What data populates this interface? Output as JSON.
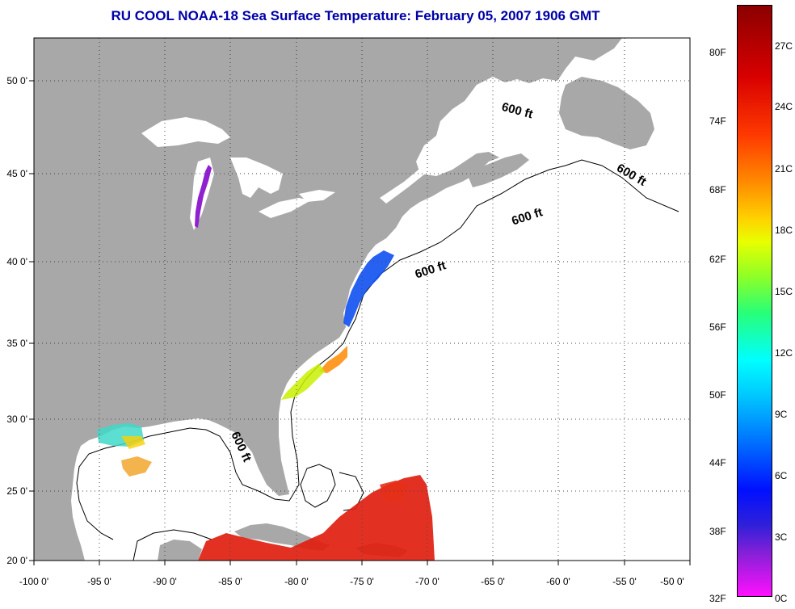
{
  "title": "RU COOL  NOAA-18  Sea Surface Temperature:  February 05, 2007 1906 GMT",
  "map": {
    "lon_ticks": [
      "-100 0'",
      "-95 0'",
      "-90 0'",
      "-85 0'",
      "-80 0'",
      "-75 0'",
      "-70 0'",
      "-65 0'",
      "-60 0'",
      "-55 0'",
      "-50 0'"
    ],
    "lat_ticks": [
      "50 0'",
      "45 0'",
      "40 0'",
      "35 0'",
      "30 0'",
      "25 0'",
      "20 0'"
    ],
    "depth_labels": [
      "600 ft",
      "600 ft",
      "600 ft",
      "600 ft",
      "600 ft"
    ],
    "land_color": "#a8a8a8",
    "ocean_color": "#ffffff"
  },
  "colorbar": {
    "fahrenheit_labels": [
      "80F",
      "74F",
      "68F",
      "62F",
      "56F",
      "50F",
      "44F",
      "38F",
      "32F"
    ],
    "celsius_labels": [
      "27C",
      "24C",
      "21C",
      "18C",
      "15C",
      "12C",
      "9C",
      "6C",
      "3C",
      "0C"
    ]
  }
}
